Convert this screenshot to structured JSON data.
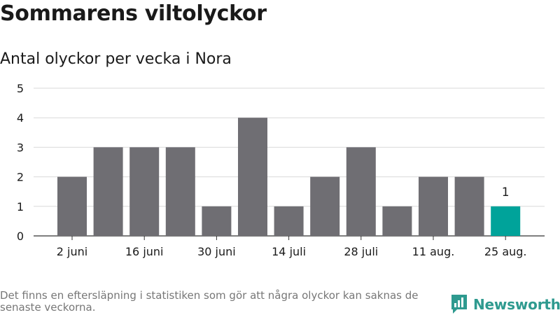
{
  "title": "Sommarens viltolyckor",
  "subtitle": "Antal olyckor per vecka i Nora",
  "footnote": "Det finns en eftersläpning i statistiken som gör att några olyckor kan saknas de senaste veckorna.",
  "brand": {
    "name": "Newsworthy",
    "color": "#2e9a8f"
  },
  "chart_data": {
    "type": "bar",
    "values": [
      2,
      3,
      3,
      3,
      1,
      4,
      1,
      2,
      3,
      1,
      2,
      2,
      1
    ],
    "x_tick_labels": [
      "2 juni",
      "16 juni",
      "30 juni",
      "14 juli",
      "28 juli",
      "11 aug.",
      "25 aug."
    ],
    "x_tick_bar_index": [
      0,
      2,
      4,
      6,
      8,
      10,
      12
    ],
    "ylim": [
      0,
      5
    ],
    "yticks": [
      0,
      1,
      2,
      3,
      4,
      5
    ],
    "grid": true,
    "bar_color": "#6f6e73",
    "highlight_color": "#00a39a",
    "highlight_index": 12,
    "data_labels": [
      {
        "index": 12,
        "text": "1"
      }
    ]
  }
}
